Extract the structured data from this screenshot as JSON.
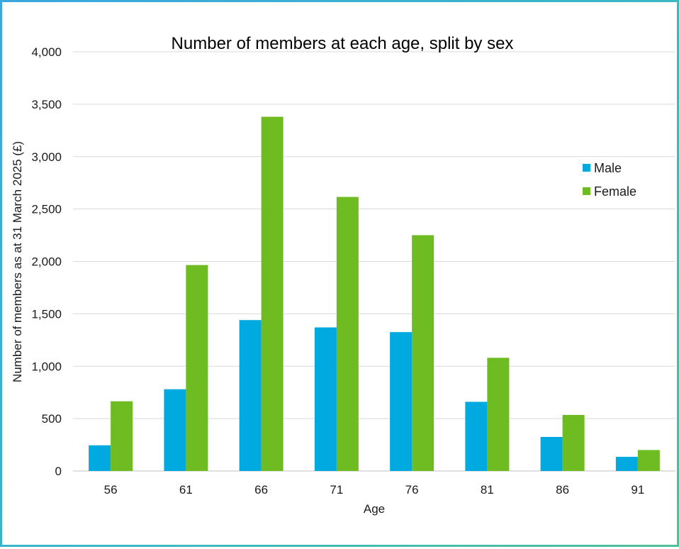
{
  "chart_data": {
    "type": "bar",
    "title": "Number of members at each age, split by sex",
    "xlabel": "Age",
    "ylabel": "Number of members as at 31 March 2025 (£)",
    "categories": [
      "56",
      "61",
      "66",
      "71",
      "76",
      "81",
      "86",
      "91"
    ],
    "series": [
      {
        "name": "Male",
        "color": "#00a9e0",
        "values": [
          245,
          780,
          1440,
          1370,
          1325,
          660,
          325,
          135
        ]
      },
      {
        "name": "Female",
        "color": "#6fbb22",
        "values": [
          665,
          1965,
          3380,
          2615,
          2250,
          1080,
          535,
          200
        ]
      }
    ],
    "ylim": [
      0,
      4000
    ],
    "yticks": [
      0,
      500,
      1000,
      1500,
      2000,
      2500,
      3000,
      3500,
      4000
    ],
    "ytick_labels": [
      "0",
      "500",
      "1,000",
      "1,500",
      "2,000",
      "2,500",
      "3,000",
      "3,500",
      "4,000"
    ],
    "grid": true,
    "legend_position": "right"
  }
}
